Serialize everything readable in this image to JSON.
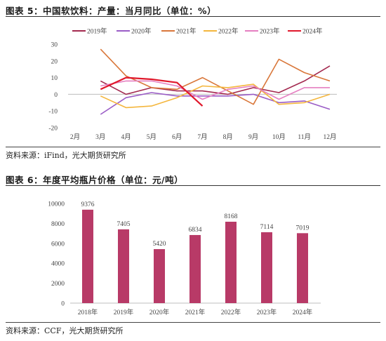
{
  "figure5": {
    "title": "图表 5：中国软饮料：产量：当月同比（单位：%）",
    "source": "资料来源：iFind，光大期货研究所"
  },
  "figure6": {
    "title": "图表 6：年度平均瓶片价格（单位：元/吨）",
    "source": "资料来源：CCF，光大期货研究所"
  },
  "chart_data": [
    {
      "type": "line",
      "title": "",
      "x": [
        "2月",
        "3月",
        "4月",
        "5月",
        "6月",
        "7月",
        "8月",
        "9月",
        "10月",
        "11月",
        "12月"
      ],
      "ylim": [
        -20,
        30
      ],
      "yticks": [
        -20,
        -10,
        0,
        10,
        20,
        30
      ],
      "legend_position": "top",
      "grid": false,
      "series": [
        {
          "name": "2019年",
          "color": "#a3294f",
          "values": [
            null,
            8,
            0,
            4,
            2,
            2,
            0,
            4,
            1,
            8,
            17
          ]
        },
        {
          "name": "2020年",
          "color": "#9a5cc6",
          "values": [
            null,
            -12,
            -2,
            1,
            -1,
            -1,
            -1,
            0,
            -5,
            -4,
            -9
          ]
        },
        {
          "name": "2021年",
          "color": "#d9773a",
          "values": [
            null,
            27,
            11,
            4,
            3,
            10,
            2,
            -6,
            21,
            13,
            8
          ]
        },
        {
          "name": "2022年",
          "color": "#f4b63d",
          "values": [
            null,
            -1,
            -8,
            -7,
            -2,
            5,
            4,
            6,
            -6,
            -5,
            0
          ]
        },
        {
          "name": "2023年",
          "color": "#e57fc1",
          "values": [
            null,
            5,
            8,
            8,
            5,
            -3,
            3,
            5,
            -3,
            4,
            4
          ]
        },
        {
          "name": "2024年",
          "color": "#e0182c",
          "values": [
            null,
            3,
            10,
            9,
            7,
            -7,
            null,
            null,
            null,
            null,
            null
          ]
        }
      ]
    },
    {
      "type": "bar",
      "title": "",
      "categories": [
        "2018年",
        "2019年",
        "2020年",
        "2021年",
        "2022年",
        "2023年",
        "2024年"
      ],
      "values": [
        9376,
        7405,
        5420,
        6834,
        8168,
        7114,
        7019
      ],
      "ylim": [
        0,
        10000
      ],
      "yticks": [
        0,
        2000,
        4000,
        6000,
        8000,
        10000
      ],
      "color": "#b83a67",
      "grid": false
    }
  ]
}
